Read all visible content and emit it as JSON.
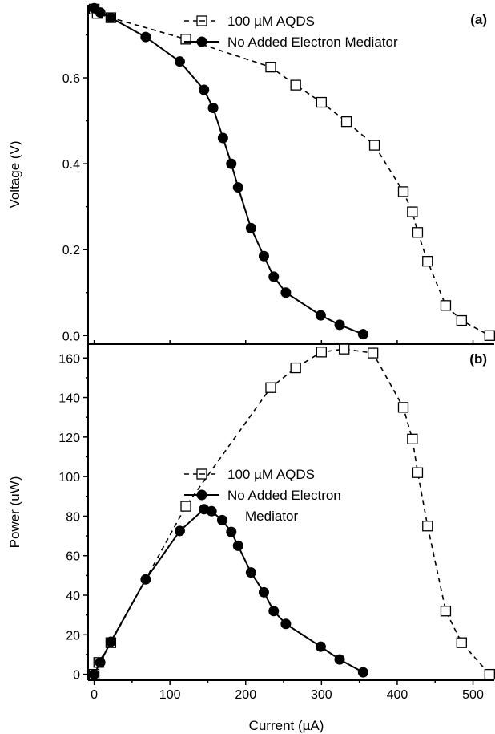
{
  "chart_data": [
    {
      "panel": "(a)",
      "type": "line",
      "xlabel": "Current (µA)",
      "ylabel": "Voltage (V)",
      "xlim": [
        -8,
        528
      ],
      "ylim": [
        -0.02,
        0.77
      ],
      "xticks": [
        "0",
        "100",
        "200",
        "300",
        "400",
        "500"
      ],
      "yticks": [
        "0.0",
        "0.2",
        "0.4",
        "0.6"
      ],
      "legend": "top-center",
      "series": [
        {
          "name": "100 µM AQDS",
          "style": "dashed-open-square",
          "x": [
            0,
            4,
            22,
            121,
            233,
            266,
            300,
            333,
            370,
            408,
            420,
            427,
            440,
            464,
            485,
            522
          ],
          "y": [
            0.76,
            0.75,
            0.74,
            0.69,
            0.625,
            0.583,
            0.543,
            0.498,
            0.443,
            0.335,
            0.288,
            0.24,
            0.173,
            0.07,
            0.035,
            0.0
          ]
        },
        {
          "name": "No Added Electron Mediator",
          "style": "solid-filled-circle",
          "x": [
            0,
            8,
            22,
            68,
            113,
            145,
            157,
            170,
            181,
            190,
            207,
            224,
            237,
            253,
            299,
            324,
            355
          ],
          "y": [
            0.762,
            0.752,
            0.74,
            0.695,
            0.638,
            0.572,
            0.53,
            0.46,
            0.4,
            0.345,
            0.25,
            0.185,
            0.137,
            0.1,
            0.047,
            0.025,
            0.003
          ]
        }
      ]
    },
    {
      "panel": "(b)",
      "type": "line",
      "xlabel": "Current (µA)",
      "ylabel": "Power (uW)",
      "xlim": [
        -8,
        528
      ],
      "ylim": [
        -3,
        167
      ],
      "xticks": [
        "0",
        "100",
        "200",
        "300",
        "400",
        "500"
      ],
      "yticks": [
        "0",
        "20",
        "40",
        "60",
        "80",
        "100",
        "120",
        "140",
        "160"
      ],
      "legend": "center",
      "series": [
        {
          "name": "100 µM AQDS",
          "legend_lines": [
            "100 µM AQDS"
          ],
          "style": "dashed-open-square",
          "x": [
            0,
            6,
            22,
            121,
            233,
            266,
            300,
            330,
            368,
            408,
            420,
            427,
            440,
            464,
            485,
            522
          ],
          "y": [
            0,
            6,
            16,
            85,
            145,
            155,
            163,
            164.5,
            162.5,
            135,
            119,
            102,
            75,
            32,
            16,
            0
          ]
        },
        {
          "name": "No Added Electron Mediator",
          "legend_lines": [
            "No Added Electron",
            "Mediator"
          ],
          "style": "solid-filled-circle",
          "x": [
            0,
            8,
            22,
            68,
            113,
            145,
            155,
            169,
            181,
            190,
            207,
            224,
            237,
            253,
            299,
            324,
            355
          ],
          "y": [
            0,
            6,
            16.5,
            48,
            72.5,
            83.5,
            82.5,
            78,
            72,
            65,
            51.5,
            41.5,
            32,
            25.5,
            14,
            7.5,
            1
          ]
        }
      ]
    }
  ]
}
